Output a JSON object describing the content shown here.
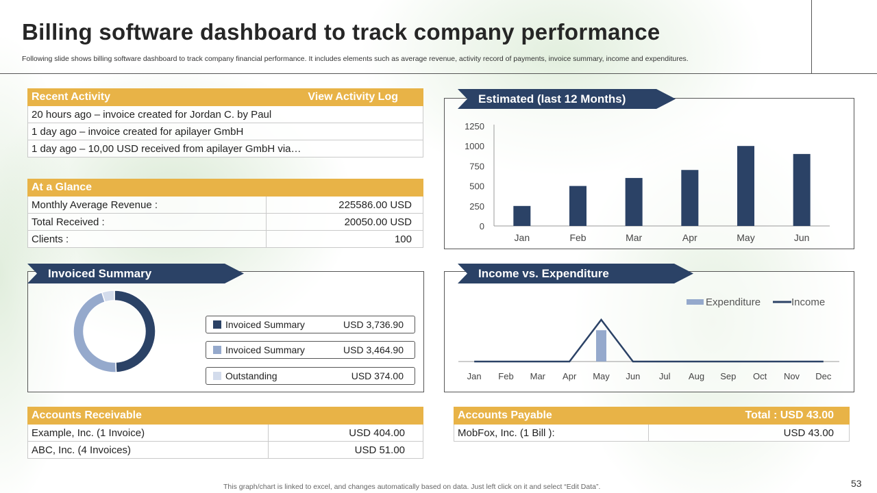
{
  "slide": {
    "title": "Billing software dashboard to track company performance",
    "subtitle": "Following slide shows billing software dashboard to track company financial performance. It includes elements such as average revenue, activity  record of payments, invoice summary, income and expenditures.",
    "footnote": "This graph/chart is linked to excel,  and changes automatically based on data. Just left click on it and select “Edit Data”.",
    "page_number": "53"
  },
  "recent_activity": {
    "title": "Recent Activity",
    "link": "View Activity Log",
    "items": [
      "20 hours ago – invoice created for Jordan C. by Paul",
      "1 day ago – invoice created for apilayer GmbH",
      "1 day ago – 10,00 USD received from apilayer GmbH via…"
    ]
  },
  "at_a_glance": {
    "title": "At a Glance",
    "rows": [
      {
        "label": "Monthly Average Revenue :",
        "value": "225586.00 USD"
      },
      {
        "label": "Total Received :",
        "value": "20050.00 USD"
      },
      {
        "label": "Clients :",
        "value": "100"
      }
    ]
  },
  "invoiced_summary": {
    "title": "Invoiced Summary",
    "items": [
      {
        "label": "Invoiced Summary",
        "value": "USD 3,736.90",
        "color": "#2b4266"
      },
      {
        "label": "Invoiced Summary",
        "value": "USD 3,464.90",
        "color": "#95a9cc"
      },
      {
        "label": "Outstanding",
        "value": "USD 374.00",
        "color": "#d3dcec"
      }
    ],
    "donut_values": [
      3736.9,
      3464.9,
      374.0
    ]
  },
  "accounts_receivable": {
    "title": "Accounts Receivable",
    "rows": [
      {
        "label": "Example, Inc. (1 Invoice)",
        "value": "USD 404.00"
      },
      {
        "label": "ABC, Inc. (4 Invoices)",
        "value": "USD 51.00"
      }
    ]
  },
  "accounts_payable": {
    "title": "Accounts Payable",
    "total": "Total : USD 43.00",
    "rows": [
      {
        "label": "MobFox, Inc. (1 Bill ):",
        "value": "USD 43.00"
      }
    ]
  },
  "estimated_title": "Estimated (last 12 Months)",
  "income_title": "Income vs. Expenditure",
  "colors": {
    "navy": "#2b4266",
    "gold": "#e8b347",
    "light_blue": "#95a9cc",
    "pale_blue": "#d3dcec"
  },
  "chart_data": [
    {
      "type": "bar",
      "title": "Estimated (last 12 Months)",
      "categories": [
        "Jan",
        "Feb",
        "Mar",
        "Apr",
        "May",
        "Jun"
      ],
      "values": [
        250,
        500,
        600,
        700,
        1000,
        900
      ],
      "ylim": [
        0,
        1250
      ],
      "yticks": [
        0,
        250,
        500,
        750,
        1000,
        1250
      ],
      "grid": false,
      "color": "#2b4266"
    },
    {
      "type": "line",
      "title": "Income vs. Expenditure",
      "categories": [
        "Jan",
        "Feb",
        "Mar",
        "Apr",
        "May",
        "Jun",
        "Jul",
        "Aug",
        "Sep",
        "Oct",
        "Nov",
        "Dec"
      ],
      "series": [
        {
          "name": "Expenditure",
          "kind": "bar",
          "values": [
            0,
            0,
            0,
            0,
            75,
            0,
            0,
            0,
            0,
            0,
            0,
            0
          ],
          "color": "#95a9cc"
        },
        {
          "name": "Income",
          "kind": "line",
          "values": [
            0,
            0,
            0,
            0,
            100,
            0,
            0,
            0,
            0,
            0,
            0,
            0
          ],
          "color": "#2b4266"
        }
      ],
      "ylim": [
        0,
        100
      ],
      "legend": "top-right"
    }
  ]
}
